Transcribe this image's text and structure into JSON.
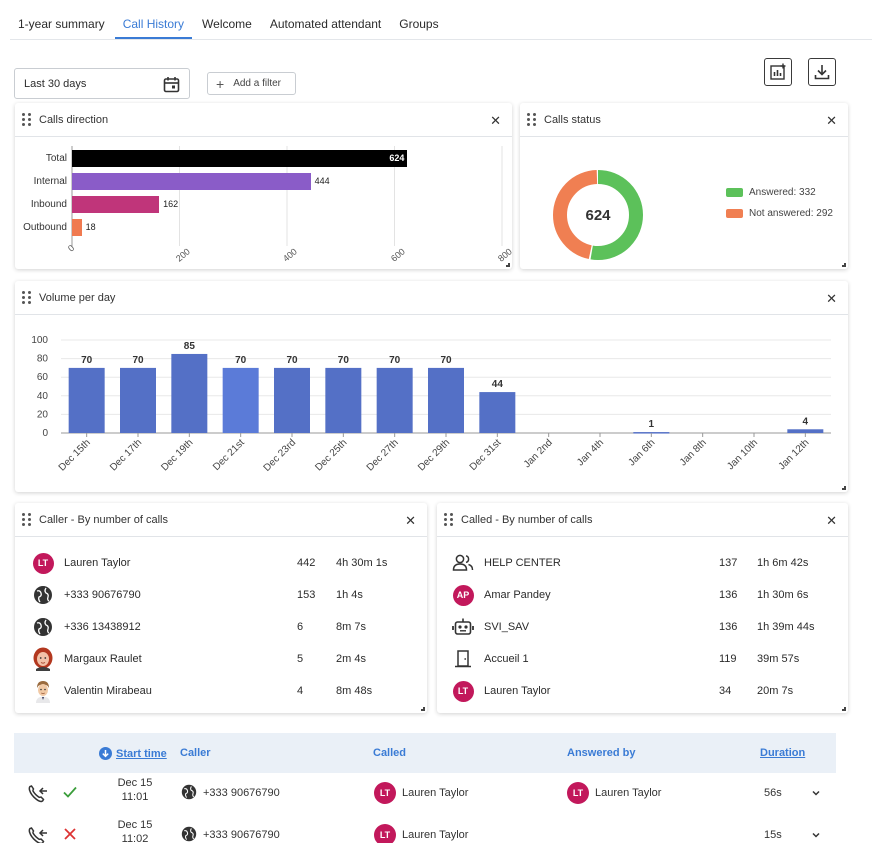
{
  "tabs": [
    "1-year summary",
    "Call History",
    "Welcome",
    "Automated attendant",
    "Groups"
  ],
  "active_tab": 1,
  "filters": {
    "date_range": "Last 30 days",
    "add_filter_label": "Add a filter"
  },
  "calls_direction": {
    "title": "Calls direction",
    "chart_data": {
      "type": "bar",
      "orientation": "horizontal",
      "categories": [
        "Total",
        "Internal",
        "Inbound",
        "Outbound"
      ],
      "values": [
        624,
        444,
        162,
        18
      ],
      "colors": [
        "#000000",
        "#8a5cc8",
        "#c0357a",
        "#f07a50"
      ],
      "xlim": [
        0,
        800
      ],
      "ticks": [
        "0",
        "200",
        "400",
        "600",
        "800"
      ]
    }
  },
  "calls_status": {
    "title": "Calls status",
    "chart_data": {
      "type": "pie",
      "donut": true,
      "total": "624",
      "slices": [
        {
          "label": "Answered: 332",
          "value": 332,
          "color": "#5cc15a"
        },
        {
          "label": "Not answered: 292",
          "value": 292,
          "color": "#f07f52"
        }
      ]
    }
  },
  "volume_per_day": {
    "title": "Volume per day",
    "chart_data": {
      "type": "bar",
      "categories": [
        "Dec 15th",
        "Dec 17th",
        "Dec 19th",
        "Dec 21st",
        "Dec 23rd",
        "Dec 25th",
        "Dec 27th",
        "Dec 29th",
        "Dec 31st",
        "Jan 2nd",
        "Jan 4th",
        "Jan 6th",
        "Jan 8th",
        "Jan 10th",
        "Jan 12th"
      ],
      "values": [
        70,
        70,
        85,
        70,
        70,
        70,
        70,
        70,
        44,
        0,
        0,
        1,
        0,
        0,
        4
      ],
      "labels": [
        "70",
        "70",
        "85",
        "70",
        "70",
        "70",
        "70",
        "70",
        "44",
        "",
        "",
        "1",
        "",
        "",
        "4"
      ],
      "ylim": [
        0,
        100
      ],
      "yticks": [
        "0",
        "20",
        "40",
        "60",
        "80",
        "100"
      ],
      "highlight_index": 3,
      "color": "#5470c6",
      "highlight_color": "#5b7bd8"
    }
  },
  "caller_rank": {
    "title": "Caller - By number of calls",
    "rows": [
      {
        "icon": "avatar-initials",
        "initials": "LT",
        "name": "Lauren Taylor",
        "count": "442",
        "duration": "4h 30m 1s"
      },
      {
        "icon": "globe-icon",
        "name": "+333 90676790",
        "count": "153",
        "duration": "1h 4s"
      },
      {
        "icon": "globe-icon",
        "name": "+336 13438912",
        "count": "6",
        "duration": "8m 7s"
      },
      {
        "icon": "avatar-photo-woman",
        "name": "Margaux Raulet",
        "count": "5",
        "duration": "2m 4s"
      },
      {
        "icon": "avatar-photo-man",
        "name": "Valentin Mirabeau",
        "count": "4",
        "duration": "8m 48s"
      }
    ]
  },
  "called_rank": {
    "title": "Called - By number of calls",
    "rows": [
      {
        "icon": "group-icon",
        "name": "HELP CENTER",
        "count": "137",
        "duration": "1h 6m 42s"
      },
      {
        "icon": "avatar-initials",
        "initials": "AP",
        "name": "Amar Pandey",
        "count": "136",
        "duration": "1h 30m 6s"
      },
      {
        "icon": "robot-icon",
        "name": "SVI_SAV",
        "count": "136",
        "duration": "1h 39m 44s"
      },
      {
        "icon": "door-icon",
        "name": "Accueil 1",
        "count": "119",
        "duration": "39m 57s"
      },
      {
        "icon": "avatar-initials",
        "initials": "LT",
        "name": "Lauren Taylor",
        "count": "34",
        "duration": "20m 7s"
      }
    ]
  },
  "table": {
    "headers": {
      "start_time": "Start time",
      "caller": "Caller",
      "called": "Called",
      "answered_by": "Answered by",
      "duration": "Duration"
    },
    "rows": [
      {
        "date": "Dec 15",
        "time": "11:01",
        "status": "answered",
        "caller": "+333 90676790",
        "called_initials": "LT",
        "called": "Lauren Taylor",
        "answered_initials": "LT",
        "answered_by": "Lauren Taylor",
        "duration": "56s"
      },
      {
        "date": "Dec 15",
        "time": "11:02",
        "status": "missed",
        "caller": "+333 90676790",
        "called_initials": "LT",
        "called": "Lauren Taylor",
        "answered_initials": "",
        "answered_by": "",
        "duration": "15s"
      }
    ]
  }
}
